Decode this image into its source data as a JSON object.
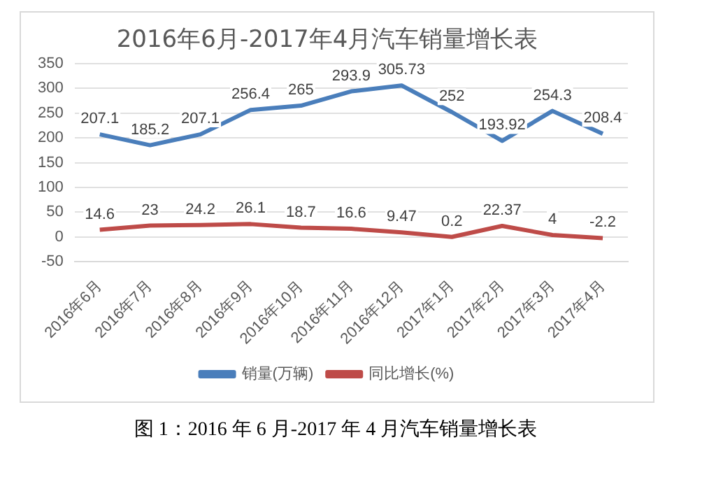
{
  "chart_data": {
    "type": "line",
    "title": "2016年6月-2017年4月汽车销量增长表",
    "categories": [
      "2016年6月",
      "2016年7月",
      "2016年8月",
      "2016年9月",
      "2016年10月",
      "2016年11月",
      "2016年12月",
      "2017年1月",
      "2017年2月",
      "2017年3月",
      "2017年4月"
    ],
    "series": [
      {
        "name": "销量(万辆)",
        "color": "#4a7ebb",
        "values": [
          207.1,
          185.2,
          207.1,
          256.4,
          265,
          293.9,
          305.73,
          252,
          193.92,
          254.3,
          208.4
        ]
      },
      {
        "name": "同比增长(%)",
        "color": "#be4b48",
        "values": [
          14.6,
          23,
          24.2,
          26.1,
          18.7,
          16.6,
          9.47,
          0.2,
          22.37,
          4,
          -2.2
        ]
      }
    ],
    "ylim": [
      -50,
      350
    ],
    "yticks": [
      -50,
      0,
      50,
      100,
      150,
      200,
      250,
      300,
      350
    ],
    "grid": "y",
    "legend": "bottom",
    "marker": "none",
    "line_style": "solid",
    "data_labels": true,
    "annotations": [
      "图 1：2016 年 6 月-2017 年 4 月汽车销量增长表"
    ]
  }
}
